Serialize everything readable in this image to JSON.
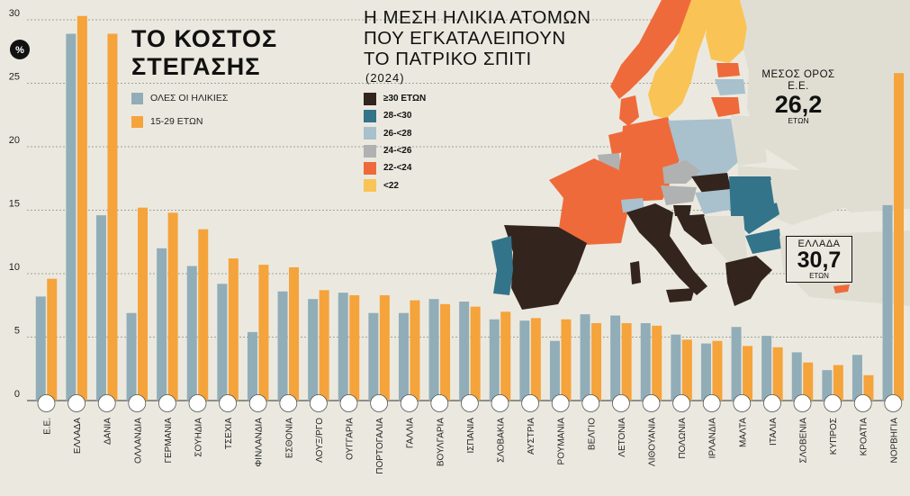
{
  "title": {
    "line1": "ΤΟ  ΚΟΣΤΟΣ",
    "line2": "ΣΤΕΓΑΣΗΣ"
  },
  "percent_badge": "%",
  "colors": {
    "all_ages": "#91adb8",
    "young": "#f5a33b",
    "bg": "#ebe9df"
  },
  "chart_data": {
    "type": "bar",
    "ylim": [
      0,
      30
    ],
    "yticks": [
      0,
      5,
      10,
      15,
      20,
      25,
      30
    ],
    "ylabel": "%",
    "categories": [
      "Ε.Ε.",
      "ΕΛΛΑΔΑ",
      "ΔΑΝΙΑ",
      "ΟΛΛΑΝΔΙΑ",
      "ΓΕΡΜΑΝΙΑ",
      "ΣΟΥΗΔΙΑ",
      "ΤΣΕΧΙΑ",
      "ΦΙΝΛΑΝΔΙΑ",
      "ΕΣΘΟΝΙΑ",
      "ΛΟΥΞ/ΡΓΟ",
      "ΟΥΓΓΑΡΙΑ",
      "ΠΟΡΤΟΓΑΛΙΑ",
      "ΓΑΛΛΙΑ",
      "ΒΟΥΛΓΑΡΙΑ",
      "ΙΣΠΑΝΙΑ",
      "ΣΛΟΒΑΚΙΑ",
      "ΑΥΣΤΡΙΑ",
      "ΡΟΥΜΑΝΙΑ",
      "ΒΕΛΓΙΟ",
      "ΛΕΤΟΝΙΑ",
      "ΛΙΘΟΥΑΝΙΑ",
      "ΠΟΛΩΝΙΑ",
      "ΙΡΛΑΝΔΙΑ",
      "ΜΑΛΤΑ",
      "ΙΤΑΛΙΑ",
      "ΣΛΟΒΕΝΙΑ",
      "ΚΥΠΡΟΣ",
      "ΚΡΟΑΤΙΑ",
      "ΝΟΡΒΗΓΙΑ"
    ],
    "series": [
      {
        "name": "ΟΛΕΣ ΟΙ ΗΛΙΚΙΕΣ",
        "color": "#91adb8",
        "values": [
          8.2,
          28.9,
          14.6,
          6.9,
          12.0,
          10.6,
          9.2,
          5.4,
          8.6,
          8.0,
          8.5,
          6.9,
          6.9,
          8.0,
          7.8,
          6.4,
          6.3,
          4.7,
          6.8,
          6.7,
          6.1,
          5.2,
          4.5,
          5.8,
          5.1,
          3.8,
          2.4,
          3.6,
          15.4
        ]
      },
      {
        "name": "15-29 ΕΤΩΝ",
        "color": "#f5a33b",
        "values": [
          9.6,
          30.3,
          28.9,
          15.2,
          14.8,
          13.5,
          11.2,
          10.7,
          10.5,
          8.7,
          8.3,
          8.3,
          7.9,
          7.6,
          7.4,
          7.0,
          6.5,
          6.4,
          6.1,
          6.1,
          5.9,
          4.8,
          4.7,
          4.3,
          4.2,
          3.0,
          2.8,
          2.0,
          25.8
        ]
      }
    ]
  },
  "map": {
    "title_lines": [
      "Η ΜΕΣΗ ΗΛΙΚΙΑ ΑΤΟΜΩΝ",
      "ΠΟΥ ΕΓΚΑΤΑΛΕΙΠΟΥΝ",
      "ΤΟ ΠΑΤΡΙΚΟ ΣΠΙΤΙ"
    ],
    "year": "(2024)",
    "legend": [
      {
        "label": "≥30 ΕΤΩΝ",
        "color": "#33241e"
      },
      {
        "label": "28-<30",
        "color": "#33748a"
      },
      {
        "label": "26-<28",
        "color": "#a9c0cd"
      },
      {
        "label": "24-<26",
        "color": "#b0b1b1"
      },
      {
        "label": "22-<24",
        "color": "#ef6a3a"
      },
      {
        "label": "<22",
        "color": "#fac356"
      }
    ],
    "eu_average": {
      "label_line1": "ΜΕΣΟΣ ΟΡΟΣ",
      "label_line2": "Ε.Ε.",
      "value": "26,2",
      "unit": "ΕΤΩΝ"
    },
    "greece": {
      "label": "ΕΛΛΑΔΑ",
      "value": "30,7",
      "unit": "ΕΤΩΝ"
    }
  }
}
